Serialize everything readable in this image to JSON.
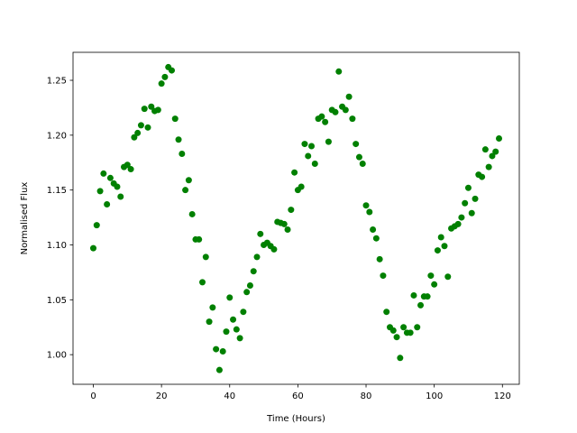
{
  "chart_data": {
    "type": "scatter",
    "xlabel": "Time (Hours)",
    "ylabel": "Normalised Flux",
    "color": "#008000",
    "x": [
      0,
      1,
      2,
      3,
      4,
      5,
      6,
      7,
      8,
      9,
      10,
      11,
      12,
      13,
      14,
      15,
      16,
      17,
      18,
      19,
      20,
      21,
      22,
      23,
      24,
      25,
      26,
      27,
      28,
      29,
      30,
      31,
      32,
      33,
      34,
      35,
      36,
      37,
      38,
      39,
      40,
      41,
      42,
      43,
      44,
      45,
      46,
      47,
      48,
      49,
      50,
      51,
      52,
      53,
      54,
      55,
      56,
      57,
      58,
      59,
      60,
      61,
      62,
      63,
      64,
      65,
      66,
      67,
      68,
      69,
      70,
      71,
      72,
      73,
      74,
      75,
      76,
      77,
      78,
      79,
      80,
      81,
      82,
      83,
      84,
      85,
      86,
      87,
      88,
      89,
      90,
      91,
      92,
      93,
      94,
      95,
      96,
      97,
      98,
      99,
      100,
      101,
      102,
      103,
      104,
      105,
      106,
      107,
      108,
      109,
      110,
      111,
      112,
      113,
      114,
      115,
      116,
      117,
      118,
      119
    ],
    "values": [
      1.097,
      1.118,
      1.149,
      1.165,
      1.137,
      1.161,
      1.156,
      1.153,
      1.144,
      1.171,
      1.173,
      1.169,
      1.198,
      1.202,
      1.209,
      1.224,
      1.207,
      1.226,
      1.222,
      1.223,
      1.247,
      1.253,
      1.262,
      1.259,
      1.215,
      1.196,
      1.183,
      1.15,
      1.159,
      1.128,
      1.105,
      1.105,
      1.066,
      1.089,
      1.03,
      1.043,
      1.005,
      0.986,
      1.003,
      1.021,
      1.052,
      1.032,
      1.023,
      1.015,
      1.039,
      1.057,
      1.063,
      1.076,
      1.089,
      1.11,
      1.1,
      1.102,
      1.099,
      1.096,
      1.121,
      1.12,
      1.119,
      1.114,
      1.132,
      1.166,
      1.15,
      1.153,
      1.192,
      1.181,
      1.19,
      1.174,
      1.215,
      1.217,
      1.212,
      1.194,
      1.223,
      1.221,
      1.258,
      1.226,
      1.223,
      1.235,
      1.215,
      1.192,
      1.18,
      1.174,
      1.136,
      1.13,
      1.114,
      1.106,
      1.087,
      1.072,
      1.039,
      1.025,
      1.022,
      1.016,
      0.997,
      1.025,
      1.02,
      1.02,
      1.054,
      1.025,
      1.045,
      1.053,
      1.053,
      1.072,
      1.064,
      1.095,
      1.107,
      1.099,
      1.071,
      1.115,
      1.117,
      1.119,
      1.125,
      1.138,
      1.152,
      1.129,
      1.142,
      1.164,
      1.162,
      1.187,
      1.171,
      1.181,
      1.185,
      1.197
    ],
    "xlim": [
      -5.95,
      124.95
    ],
    "xticks": [
      0,
      20,
      40,
      60,
      80,
      100,
      120
    ],
    "ylim": [
      0.973,
      1.2755
    ],
    "yticks": [
      {
        "value": 1.0,
        "label": "1.00"
      },
      {
        "value": 1.05,
        "label": "1.05"
      },
      {
        "value": 1.1,
        "label": "1.10"
      },
      {
        "value": 1.15,
        "label": "1.15"
      },
      {
        "value": 1.2,
        "label": "1.20"
      },
      {
        "value": 1.25,
        "label": "1.25"
      }
    ]
  }
}
